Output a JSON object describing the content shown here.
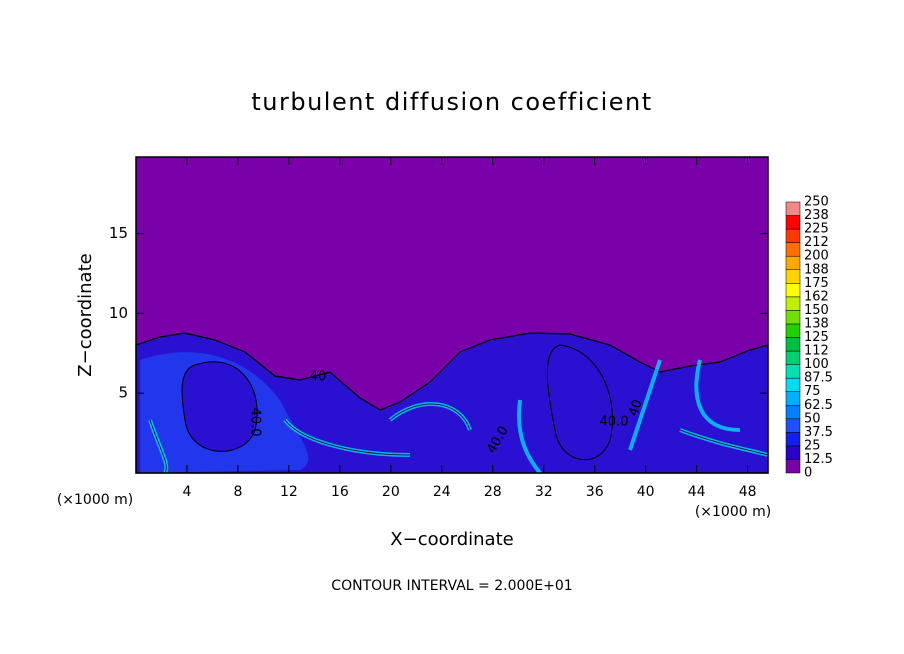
{
  "chart_data": {
    "type": "contour",
    "title": "turbulent diffusion coefficient",
    "x_label": "X−coordinate",
    "y_label": "Z−coordinate",
    "x_unit_left": "(×1000 m)",
    "x_unit_right": "(×1000 m)",
    "footnote": "CONTOUR INTERVAL = 2.000E+01",
    "xlim": [
      0,
      49.6
    ],
    "xticks": [
      4,
      8,
      12,
      16,
      20,
      24,
      28,
      32,
      36,
      40,
      44,
      48
    ],
    "ylim": [
      0,
      19.8
    ],
    "yticks": [
      5,
      10,
      15
    ],
    "contour_labels": [
      "40",
      "40.0",
      "40.0",
      "40.0",
      "40"
    ],
    "colorbar": {
      "levels": [
        0,
        12.5,
        25,
        37.5,
        50,
        62.5,
        75,
        87.5,
        100,
        {
          "value": 112.5,
          "label": "112"
        },
        125,
        {
          "value": 137.5,
          "label": "138"
        },
        150,
        {
          "value": 162.5,
          "label": "162"
        },
        175,
        {
          "value": 187.5,
          "label": "188"
        },
        200,
        {
          "value": 212.5,
          "label": "212"
        },
        225,
        {
          "value": 237.5,
          "label": "238"
        },
        250
      ],
      "colors": [
        "#7a00aa",
        "#2c00c8",
        "#1020ee",
        "#1e50ff",
        "#0080ff",
        "#00b0ff",
        "#00dcf0",
        "#00e0b0",
        "#00d070",
        "#00c040",
        "#20d000",
        "#70e000",
        "#c0f000",
        "#ffff00",
        "#ffd400",
        "#ffa800",
        "#ff7000",
        "#ff3800",
        "#ff0000",
        "#f08888"
      ]
    }
  }
}
